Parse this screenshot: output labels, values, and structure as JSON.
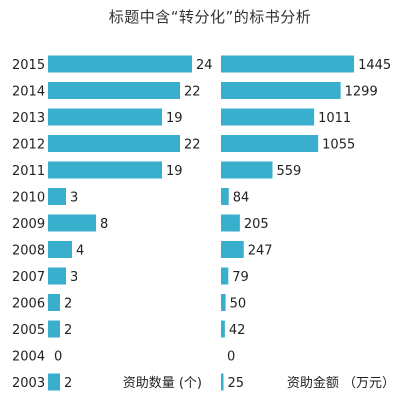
{
  "chart_data": {
    "type": "bar",
    "title": "标题中含“转分化”的标书分析",
    "categories": [
      "2015",
      "2014",
      "2013",
      "2012",
      "2011",
      "2010",
      "2009",
      "2008",
      "2007",
      "2006",
      "2005",
      "2004",
      "2003"
    ],
    "bar_color": "#3aaecd",
    "panels": [
      {
        "name": "资助数量 (个)",
        "values": [
          24,
          22,
          19,
          22,
          19,
          3,
          8,
          4,
          3,
          2,
          2,
          0,
          2
        ],
        "xlim": [
          0,
          25
        ]
      },
      {
        "name": "资助金额 （万元）",
        "values": [
          1445,
          1299,
          1011,
          1055,
          559,
          84,
          205,
          247,
          79,
          50,
          42,
          0,
          25
        ],
        "xlim": [
          0,
          1520
        ]
      }
    ]
  }
}
